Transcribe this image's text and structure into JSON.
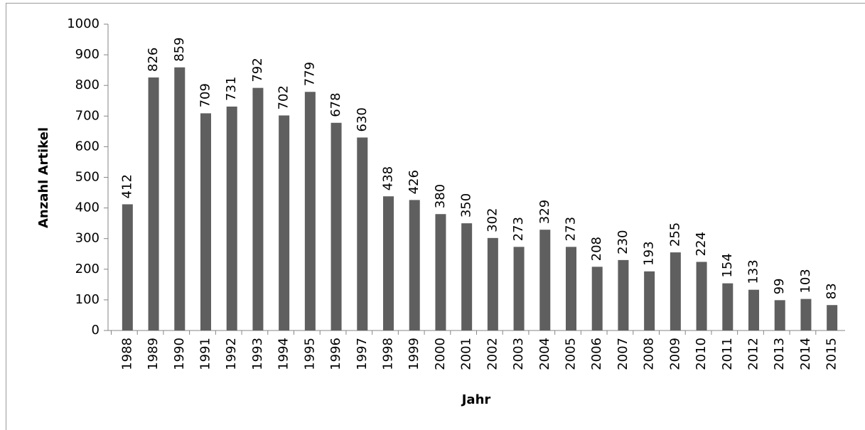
{
  "chart_data": {
    "type": "bar",
    "x_label": "Jahr",
    "y_label": "Anzahl Artikel",
    "categories": [
      "1988",
      "1989",
      "1990",
      "1991",
      "1992",
      "1993",
      "1994",
      "1995",
      "1996",
      "1997",
      "1998",
      "1999",
      "2000",
      "2001",
      "2002",
      "2003",
      "2004",
      "2005",
      "2006",
      "2007",
      "2008",
      "2009",
      "2010",
      "2011",
      "2012",
      "2013",
      "2014",
      "2015"
    ],
    "values": [
      412,
      826,
      859,
      709,
      731,
      792,
      702,
      779,
      678,
      630,
      438,
      426,
      380,
      350,
      302,
      273,
      329,
      273,
      208,
      230,
      193,
      255,
      224,
      154,
      133,
      99,
      103,
      83
    ],
    "color": "#5f5f5f",
    "ylim": [
      0,
      1000
    ],
    "yticks": [
      0,
      100,
      200,
      300,
      400,
      500,
      600,
      700,
      800,
      900,
      1000
    ],
    "grid": false
  }
}
